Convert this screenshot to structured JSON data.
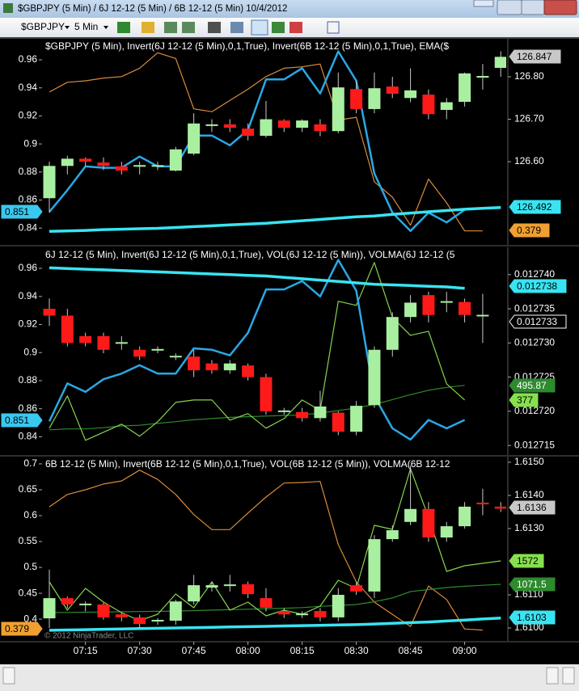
{
  "window": {
    "title": "$GBPJPY (5 Min) / 6J 12-12 (5 Min) / 6B 12-12 (5 Min)  10/4/2012"
  },
  "toolbar": {
    "instrument": "$GBPJPY",
    "interval": "5 Min"
  },
  "watermark": "© 2012 NinjaTrader, LLC",
  "chart_data": [
    {
      "type": "candlestick",
      "title": "$GBPJPY (5 Min), Invert(6J 12-12 (5 Min),0,1,True), Invert(6B 12-12 (5 Min),0,1,True), EMA($",
      "ylim": [
        0.828,
        0.975
      ],
      "yticks": [
        0.84,
        0.86,
        0.88,
        0.9,
        0.92,
        0.94,
        0.96
      ],
      "y2lim": [
        126.404,
        126.8895
      ],
      "y2ticks": [
        {
          "value": 126.6,
          "label": "126.60"
        },
        {
          "value": 126.7,
          "label": "126.70"
        },
        {
          "value": 126.8,
          "label": "126.80"
        }
      ],
      "up_color": "#a8f0a0",
      "down_color": "#ff1a1a",
      "wick_color": "#c8c8c8",
      "open": [
        126.514,
        126.59,
        126.607,
        126.598,
        126.589,
        126.59,
        126.59,
        126.579,
        126.619,
        126.686,
        126.688,
        126.678,
        126.661,
        126.697,
        126.68,
        126.688,
        126.672,
        126.771,
        126.724,
        126.777,
        126.75,
        126.758,
        126.722,
        126.741,
        126.8,
        126.821
      ],
      "high": [
        126.6,
        126.614,
        126.61,
        126.61,
        126.6,
        126.6,
        126.6,
        126.635,
        126.714,
        126.7,
        126.7,
        126.69,
        126.743,
        126.7,
        126.7,
        126.7,
        126.81,
        126.79,
        126.81,
        126.8,
        126.82,
        126.77,
        126.75,
        126.81,
        126.83,
        126.86
      ],
      "low": [
        126.48,
        126.57,
        126.59,
        126.58,
        126.57,
        126.57,
        126.58,
        126.577,
        126.615,
        126.67,
        126.67,
        126.65,
        126.657,
        126.67,
        126.67,
        126.66,
        126.667,
        126.714,
        126.714,
        126.75,
        126.74,
        126.7,
        126.7,
        126.73,
        126.77,
        126.8
      ],
      "close": [
        126.59,
        126.607,
        126.6,
        126.59,
        126.579,
        126.59,
        126.59,
        126.629,
        126.69,
        126.686,
        126.68,
        126.661,
        126.7,
        126.68,
        126.697,
        126.672,
        126.775,
        126.724,
        126.773,
        126.76,
        126.768,
        126.712,
        126.74,
        126.808,
        126.8,
        126.847
      ],
      "series": [
        {
          "color": "#d98b3a",
          "width": 1.2,
          "axis": "y",
          "values": [
            0.937,
            0.944,
            0.945,
            0.947,
            0.948,
            0.954,
            0.965,
            0.961,
            0.925,
            0.923,
            0.931,
            0.939,
            0.948,
            0.954,
            0.955,
            0.957,
            0.917,
            0.919,
            0.873,
            0.862,
            0.842,
            0.875,
            0.858,
            0.838,
            0.838,
            null
          ]
        },
        {
          "color": "#2aa8e6",
          "width": 2.5,
          "axis": "y",
          "values": [
            0.8515,
            0.867,
            0.884,
            0.883,
            0.883,
            0.891,
            0.884,
            0.884,
            0.906,
            0.906,
            0.899,
            0.91,
            0.946,
            0.946,
            0.954,
            0.936,
            0.966,
            0.945,
            0.879,
            0.851,
            0.838,
            0.851,
            0.844,
            0.853,
            null,
            null
          ]
        },
        {
          "color": "#38e4f2",
          "width": 3.5,
          "axis": "y2",
          "values": [
            126.436,
            126.437,
            126.438,
            126.44,
            126.441,
            126.442,
            126.443,
            126.445,
            126.447,
            126.449,
            126.451,
            126.453,
            126.455,
            126.458,
            126.461,
            126.464,
            126.467,
            126.47,
            126.472,
            126.476,
            126.479,
            126.482,
            126.485,
            126.488,
            126.49,
            126.492
          ]
        }
      ],
      "tags": [
        {
          "value": 0.851,
          "side": "left",
          "color": "#38c8f0",
          "text_color": "#000000"
        },
        {
          "value": 126.847,
          "side": "right",
          "color": "#c8c8c8",
          "text_color": "#000000"
        },
        {
          "value": 126.492,
          "side": "right",
          "color": "#38e4f2",
          "text_color": "#000000"
        },
        {
          "value": 0.379,
          "side": "right",
          "color": "#f0a030",
          "text_color": "#000000"
        }
      ]
    },
    {
      "type": "candlestick",
      "title": "6J 12-12 (5 Min), Invert(6J 12-12 (5 Min),0,1,True), VOL(6J 12-12 (5 Min)), VOLMA(6J 12-12 (5",
      "ylim": [
        0.827,
        0.975
      ],
      "yticks": [
        0.84,
        0.86,
        0.88,
        0.9,
        0.92,
        0.94,
        0.96
      ],
      "y2lim": [
        0.0127136,
        0.012744
      ],
      "y2ticks": [
        {
          "value": 0.012715,
          "label": "0.012715"
        },
        {
          "value": 0.01272,
          "label": "0.012720"
        },
        {
          "value": 0.012725,
          "label": "0.012725"
        },
        {
          "value": 0.01273,
          "label": "0.012730"
        },
        {
          "value": 0.012735,
          "label": "0.012735"
        },
        {
          "value": 0.01274,
          "label": "0.012740"
        }
      ],
      "y3lim": [
        -73,
        1624
      ],
      "up_color": "#a8f0a0",
      "down_color": "#ff1a1a",
      "wick_color": "#c8c8c8",
      "open": [
        0.012735,
        0.012734,
        0.012731,
        0.012731,
        0.01273,
        0.012729,
        0.012729,
        0.012728,
        0.012728,
        0.012727,
        0.012726,
        0.0127267,
        0.012725,
        0.01272,
        0.0127199,
        0.012719,
        0.0127198,
        0.012717,
        0.0127209,
        0.012729,
        0.0127338,
        0.012737,
        0.012736,
        0.012736,
        0.012734,
        null
      ],
      "high": [
        0.0127365,
        0.012735,
        0.0127315,
        0.0127315,
        0.012731,
        0.0127295,
        0.0127295,
        0.0127285,
        0.012729,
        0.0127275,
        0.0127275,
        0.012727,
        0.0127255,
        0.0127205,
        0.0127205,
        0.012723,
        0.01272,
        0.0127215,
        0.0127295,
        0.0127345,
        0.012737,
        0.0127375,
        0.0127375,
        0.0127365,
        0.0127372,
        null
      ],
      "low": [
        0.0127325,
        0.0127295,
        0.0127295,
        0.0127285,
        0.012729,
        0.0127275,
        0.0127285,
        0.0127275,
        0.012725,
        0.0127255,
        0.0127255,
        0.0127245,
        0.0127195,
        0.0127195,
        0.0127185,
        0.0127185,
        0.0127165,
        0.0127165,
        0.0127205,
        0.012728,
        0.012733,
        0.012733,
        0.0127345,
        0.012733,
        0.01273,
        null
      ],
      "close": [
        0.012734,
        0.01273,
        0.01273,
        0.012729,
        0.01273,
        0.012728,
        0.012729,
        0.012728,
        0.012726,
        0.012726,
        0.012727,
        0.012725,
        0.01272,
        0.01272,
        0.012719,
        0.0127207,
        0.012717,
        0.0127208,
        0.012729,
        0.0127338,
        0.0127359,
        0.0127341,
        0.012736,
        0.0127341,
        0.012734,
        null
      ],
      "series": [
        {
          "color": "#2d8a2d",
          "width": 1.2,
          "axis": "y3",
          "values": [
            133,
            140,
            140,
            150,
            165,
            170,
            185,
            200,
            215,
            225,
            235,
            240,
            245,
            250,
            255,
            270,
            290,
            311,
            340,
            380,
            420,
            456,
            480,
            495.87,
            null,
            null
          ]
        },
        {
          "color": "#86d44e",
          "width": 1.2,
          "axis": "y3",
          "values": [
            146,
            410,
            47,
            113,
            179,
            80,
            199,
            357,
            377,
            377,
            212,
            265,
            146,
            225,
            377,
            291,
            1183,
            1150,
            1500,
            1051,
            905,
            938,
            509,
            377,
            null,
            null
          ]
        },
        {
          "color": "#2aa8e6",
          "width": 2.5,
          "axis": "y",
          "values": [
            0.851,
            0.878,
            0.872,
            0.881,
            0.885,
            0.891,
            0.885,
            0.885,
            0.903,
            0.902,
            0.898,
            0.914,
            0.945,
            0.945,
            0.951,
            0.94,
            0.966,
            0.944,
            0.869,
            0.846,
            0.838,
            0.852,
            0.846,
            0.852,
            null,
            null
          ]
        },
        {
          "color": "#38e4f2",
          "width": 3.5,
          "axis": "y2",
          "values": [
            0.012741,
            0.0127409,
            0.0127408,
            0.0127407,
            0.0127406,
            0.0127405,
            0.0127404,
            0.0127403,
            0.0127402,
            0.0127401,
            0.01274,
            0.0127399,
            0.0127398,
            0.0127396,
            0.0127394,
            0.0127392,
            0.012739,
            0.0127388,
            0.0127386,
            0.0127385,
            0.0127384,
            0.0127383,
            0.0127382,
            0.012738,
            null,
            null
          ]
        }
      ],
      "tags": [
        {
          "value": 0.851,
          "side": "left",
          "color": "#38c8f0",
          "text_color": "#000000"
        },
        {
          "value": 0.012738,
          "side": "right",
          "color": "#38e4f2",
          "text_color": "#000000"
        },
        {
          "value": 0.012733,
          "side": "right",
          "color": "#000000",
          "text_color": "#ffffff"
        },
        {
          "value": 495.87,
          "side": "right",
          "color": "#2d8a2d",
          "text_color": "#ffffff"
        },
        {
          "value": 377,
          "side": "right",
          "color": "#86e04e",
          "text_color": "#000000"
        }
      ]
    },
    {
      "type": "candlestick",
      "title": "6B 12-12 (5 Min), Invert(6B 12-12 (5 Min),0,1,True), VOL(6B 12-12 (5 Min)), VOLMA(6B 12-12",
      "ylim": [
        0.358,
        0.714
      ],
      "yticks": [
        0.4,
        0.45,
        0.5,
        0.55,
        0.6,
        0.65,
        0.7
      ],
      "y2lim": [
        1.60961,
        1.61517
      ],
      "y2ticks": [
        {
          "value": 1.61,
          "label": "1.6100"
        },
        {
          "value": 1.611,
          "label": "1.6110"
        },
        {
          "value": 1.613,
          "label": "1.6130"
        },
        {
          "value": 1.614,
          "label": "1.6140"
        },
        {
          "value": 1.615,
          "label": "1.6150"
        }
      ],
      "y3lim": [
        -137,
        3799
      ],
      "up_color": "#a8f0a0",
      "down_color": "#ff1a1a",
      "wick_color": "#c8c8c8",
      "categories": [
        null,
        null,
        "07:15",
        null,
        null,
        "07:30",
        null,
        null,
        "07:45",
        null,
        null,
        "08:00",
        null,
        null,
        "08:15",
        null,
        null,
        "08:30",
        null,
        null,
        "08:45",
        null,
        null,
        "09:00",
        null,
        null
      ],
      "open": [
        1.61029,
        1.6109,
        1.61071,
        1.61071,
        1.61041,
        1.61032,
        1.61022,
        1.61022,
        1.6108,
        1.61122,
        1.61129,
        1.61132,
        1.6109,
        1.61051,
        1.61041,
        1.61051,
        1.61032,
        1.61129,
        1.6111,
        1.61268,
        1.6132,
        1.61359,
        1.61273,
        1.61307,
        1.61378,
        1.61366
      ],
      "high": [
        1.61176,
        1.61095,
        1.6108,
        1.61076,
        1.61045,
        1.6104,
        1.6103,
        1.61085,
        1.6116,
        1.6114,
        1.6116,
        1.6114,
        1.6112,
        1.6106,
        1.6105,
        1.6106,
        1.6112,
        1.6114,
        1.6128,
        1.6131,
        1.6149,
        1.6138,
        1.6132,
        1.6138,
        1.6142,
        1.6138
      ],
      "low": [
        1.61,
        1.6106,
        1.6105,
        1.61025,
        1.6102,
        1.61,
        1.6101,
        1.6101,
        1.6107,
        1.6111,
        1.6111,
        1.6109,
        1.6105,
        1.6103,
        1.6103,
        1.6102,
        1.6102,
        1.611,
        1.6109,
        1.6126,
        1.6131,
        1.6126,
        1.6126,
        1.613,
        1.6134,
        1.6135
      ],
      "close": [
        1.6109,
        1.61071,
        1.61071,
        1.61032,
        1.61032,
        1.61012,
        1.61022,
        1.6108,
        1.61129,
        1.61129,
        1.61129,
        1.61102,
        1.61061,
        1.61041,
        1.61041,
        1.61032,
        1.611,
        1.6111,
        1.61268,
        1.61295,
        1.61359,
        1.61273,
        1.61307,
        1.61366,
        1.61373,
        1.6136
      ],
      "series": [
        {
          "color": "#d98b3a",
          "width": 1.2,
          "axis": "y",
          "values": [
            0.617,
            0.641,
            0.65,
            0.661,
            0.667,
            0.688,
            0.67,
            0.641,
            0.602,
            0.573,
            0.573,
            0.605,
            0.636,
            0.663,
            0.664,
            0.666,
            0.544,
            0.472,
            0.433,
            0.409,
            0.386,
            0.464,
            0.438,
            0.381,
            0.379,
            null
          ]
        },
        {
          "color": "#2d8a2d",
          "width": 1.2,
          "axis": "y3",
          "values": [
            467,
            470,
            475,
            480,
            485,
            490,
            495,
            500,
            510,
            520,
            530,
            540,
            550,
            560,
            575,
            600,
            620,
            640,
            700,
            780,
            916,
            960,
            1002,
            1030,
            1050,
            1071.5
          ]
        },
        {
          "color": "#86d44e",
          "width": 1.2,
          "axis": "y3",
          "values": [
            1123,
            519,
            985,
            692,
            467,
            295,
            433,
            864,
            571,
            1123,
            519,
            692,
            398,
            519,
            433,
            605,
            1158,
            985,
            2331,
            2245,
            3540,
            2504,
            1348,
            1468,
            1520,
            1572
          ]
        },
        {
          "color": "#38e4f2",
          "width": 3.5,
          "axis": "y2",
          "values": [
            1.60993,
            1.60994,
            1.60995,
            1.60996,
            1.60997,
            1.60998,
            1.60999,
            1.61,
            1.61001,
            1.61002,
            1.61003,
            1.61004,
            1.61005,
            1.61006,
            1.61007,
            1.61008,
            1.61009,
            1.6101,
            1.61012,
            1.61014,
            1.61016,
            1.61018,
            1.61021,
            1.61024,
            1.61027,
            1.6103
          ]
        }
      ],
      "tags": [
        {
          "value": 1.6136,
          "side": "right",
          "color": "#c8c8c8",
          "text_color": "#000000"
        },
        {
          "value": 1572,
          "side": "right",
          "color": "#86e04e",
          "text_color": "#000000"
        },
        {
          "value": 1071.5,
          "side": "right",
          "color": "#2d8a2d",
          "text_color": "#ffffff"
        },
        {
          "value": 1.6103,
          "side": "right",
          "color": "#38e4f2",
          "text_color": "#000000"
        },
        {
          "value": 0.379,
          "side": "left",
          "color": "#f0a030",
          "text_color": "#000000"
        }
      ]
    }
  ]
}
